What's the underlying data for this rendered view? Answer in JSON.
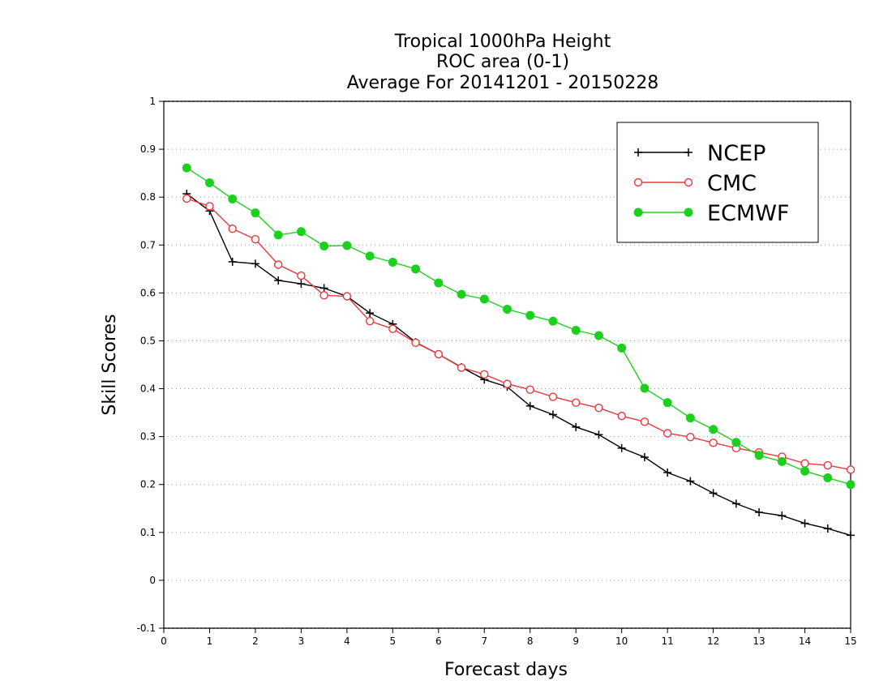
{
  "chart_data": {
    "type": "line",
    "title": [
      "Tropical 1000hPa Height",
      "ROC area (0-1)",
      "Average For 20141201 - 20150228"
    ],
    "xlabel": "Forecast days",
    "ylabel": "Skill Scores",
    "xlim": [
      0,
      15
    ],
    "ylim": [
      -0.1,
      1
    ],
    "xticks": [
      0,
      1,
      2,
      3,
      4,
      5,
      6,
      7,
      8,
      9,
      10,
      11,
      12,
      13,
      14,
      15
    ],
    "yticks": [
      -0.1,
      0,
      0.1,
      0.2,
      0.3,
      0.4,
      0.5,
      0.6,
      0.7,
      0.8,
      0.9,
      1
    ],
    "ytick_labels": [
      "-0.1",
      "0",
      "0.1",
      "0.2",
      "0.3",
      "0.4",
      "0.5",
      "0.6",
      "0.7",
      "0.8",
      "0.9",
      "1"
    ],
    "grid": "horizontal dotted",
    "legend_position": "top-right",
    "x": [
      0.5,
      1.0,
      1.5,
      2.0,
      2.5,
      3.0,
      3.5,
      4.0,
      4.5,
      5.0,
      5.5,
      6.0,
      6.5,
      7.0,
      7.5,
      8.0,
      8.5,
      9.0,
      9.5,
      10.0,
      10.5,
      11.0,
      11.5,
      12.0,
      12.5,
      13.0,
      13.5,
      14.0,
      14.5,
      15.0
    ],
    "series": [
      {
        "name": "NCEP",
        "color": "#000000",
        "marker": "plus",
        "values": [
          0.807,
          0.771,
          0.665,
          0.661,
          0.626,
          0.619,
          0.61,
          0.593,
          0.558,
          0.535,
          0.497,
          0.472,
          0.445,
          0.419,
          0.404,
          0.364,
          0.346,
          0.32,
          0.304,
          0.276,
          0.257,
          0.225,
          0.207,
          0.182,
          0.16,
          0.142,
          0.135,
          0.119,
          0.108,
          0.094
        ]
      },
      {
        "name": "CMC",
        "color": "#e8393d",
        "marker": "open-circle",
        "values": [
          0.797,
          0.781,
          0.734,
          0.712,
          0.659,
          0.636,
          0.595,
          0.593,
          0.541,
          0.525,
          0.496,
          0.472,
          0.444,
          0.43,
          0.41,
          0.398,
          0.383,
          0.371,
          0.36,
          0.343,
          0.331,
          0.307,
          0.299,
          0.287,
          0.276,
          0.267,
          0.258,
          0.244,
          0.24,
          0.231
        ]
      },
      {
        "name": "ECMWF",
        "color": "#1ed01e",
        "marker": "filled-circle",
        "values": [
          0.861,
          0.83,
          0.796,
          0.767,
          0.721,
          0.728,
          0.698,
          0.699,
          0.677,
          0.664,
          0.65,
          0.621,
          0.597,
          0.587,
          0.566,
          0.553,
          0.541,
          0.522,
          0.511,
          0.485,
          0.401,
          0.371,
          0.339,
          0.315,
          0.288,
          0.261,
          0.248,
          0.228,
          0.214,
          0.2
        ]
      }
    ]
  }
}
